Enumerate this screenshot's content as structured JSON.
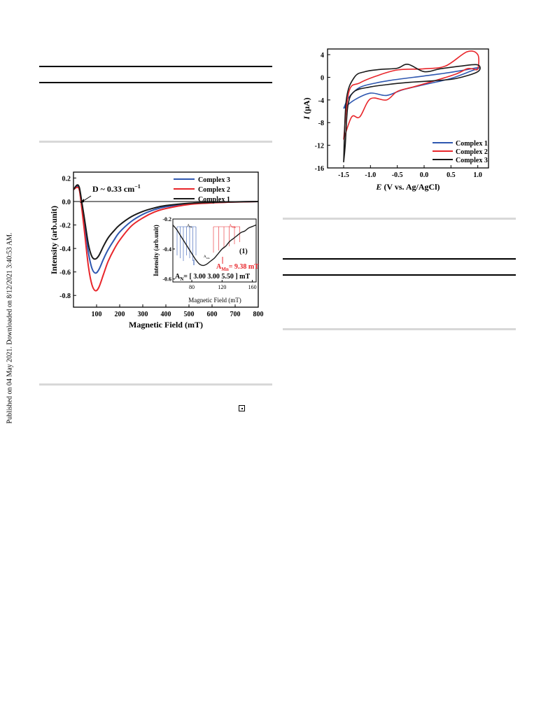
{
  "sidebar": {
    "text": "Published on 04 May 2021. Downloaded on 8/12/2021 3:40:53 AM."
  },
  "chart_data": [
    {
      "type": "line",
      "title": "",
      "xlabel": "Magnetic Field (mT)",
      "ylabel": "Intensity (arb.unit)",
      "xlim": [
        0,
        800
      ],
      "ylim": [
        -0.9,
        0.25
      ],
      "xticks": [
        100,
        200,
        300,
        400,
        500,
        600,
        700,
        800
      ],
      "yticks": [
        0.2,
        0.0,
        -0.2,
        -0.4,
        -0.6,
        -0.8
      ],
      "grid": false,
      "legend_position": "top-right",
      "annotation": "D ~ 0.33 cm",
      "annotation_sup": "−1",
      "series": [
        {
          "name": "Complex 3",
          "color": "#2e57b0",
          "x": [
            0,
            15,
            25,
            35,
            50,
            65,
            80,
            95,
            110,
            130,
            150,
            175,
            200,
            250,
            300,
            350,
            400,
            500,
            600,
            700,
            800
          ],
          "y": [
            0.1,
            0.13,
            0.11,
            -0.02,
            -0.22,
            -0.44,
            -0.57,
            -0.61,
            -0.58,
            -0.49,
            -0.41,
            -0.33,
            -0.26,
            -0.17,
            -0.11,
            -0.07,
            -0.045,
            -0.02,
            -0.01,
            -0.004,
            0.0
          ]
        },
        {
          "name": "Complex 2",
          "color": "#e8262b",
          "x": [
            0,
            15,
            25,
            35,
            50,
            65,
            80,
            95,
            110,
            130,
            150,
            175,
            200,
            250,
            300,
            350,
            400,
            500,
            600,
            700,
            800
          ],
          "y": [
            0.1,
            0.12,
            0.1,
            -0.04,
            -0.3,
            -0.56,
            -0.71,
            -0.76,
            -0.73,
            -0.62,
            -0.51,
            -0.41,
            -0.33,
            -0.21,
            -0.14,
            -0.09,
            -0.06,
            -0.025,
            -0.012,
            -0.005,
            0.0
          ]
        },
        {
          "name": "Complex 1",
          "color": "#1a1a1a",
          "x": [
            0,
            15,
            25,
            35,
            50,
            65,
            80,
            95,
            110,
            130,
            150,
            175,
            200,
            250,
            300,
            350,
            400,
            500,
            600,
            700,
            800
          ],
          "y": [
            0.1,
            0.14,
            0.12,
            0.01,
            -0.18,
            -0.37,
            -0.47,
            -0.49,
            -0.46,
            -0.38,
            -0.31,
            -0.25,
            -0.2,
            -0.13,
            -0.085,
            -0.055,
            -0.035,
            -0.015,
            -0.007,
            -0.003,
            0.0
          ]
        }
      ],
      "inset": {
        "xlabel": "Magnetic Field (mT)",
        "ylabel": "Intensity (arb.unit)",
        "xlim": [
          55,
          165
        ],
        "ylim": [
          -0.62,
          -0.2
        ],
        "xticks": [
          80,
          120,
          160
        ],
        "yticks": [
          -0.2,
          -0.4,
          -0.6
        ],
        "label": "(1)",
        "a_n_label": "A",
        "a_n_sub": "N",
        "a_mn_label": "A",
        "a_mn_sub": "Mn",
        "a_n_text": "= [ 3.00   3.00   5.50 ] mT",
        "a_mn_text": "= 9.38 mT",
        "a_mn_color": "#e8262b",
        "curve": {
          "x": [
            55,
            60,
            65,
            70,
            75,
            80,
            85,
            90,
            95,
            100,
            105,
            110,
            115,
            120,
            125,
            130,
            135,
            140,
            145,
            150,
            155,
            160,
            165
          ],
          "y": [
            -0.24,
            -0.27,
            -0.31,
            -0.35,
            -0.39,
            -0.43,
            -0.47,
            -0.5,
            -0.51,
            -0.5,
            -0.48,
            -0.46,
            -0.43,
            -0.4,
            -0.38,
            -0.35,
            -0.33,
            -0.31,
            -0.29,
            -0.28,
            -0.26,
            -0.25,
            -0.24
          ]
        }
      }
    },
    {
      "type": "line",
      "title": "",
      "xlabel": "E (V vs. Ag/AgCl)",
      "xlabel_italic": "E",
      "xlabel_rest": " (V vs. Ag/AgCl)",
      "ylabel": "I (μA)",
      "ylabel_italic": "I",
      "ylabel_rest": " (μA)",
      "xlim": [
        -1.8,
        1.2
      ],
      "ylim": [
        -16,
        5
      ],
      "xticks": [
        -1.5,
        -1.0,
        -0.5,
        0.0,
        0.5,
        1.0
      ],
      "yticks": [
        4,
        0,
        -4,
        -8,
        -12,
        -16
      ],
      "grid": false,
      "legend_position": "bottom-right",
      "series": [
        {
          "name": "Complex 1",
          "color": "#2e57b0",
          "x": [
            -1.5,
            -1.3,
            -1.0,
            -0.7,
            -0.4,
            0.0,
            0.5,
            0.9,
            1.0,
            1.0,
            0.7,
            0.3,
            -0.2,
            -0.6,
            -0.9,
            -1.2,
            -1.4,
            -1.5
          ],
          "y": [
            -5.5,
            -4.0,
            -2.8,
            -3.2,
            -2.2,
            -1.3,
            -0.2,
            1.2,
            1.5,
            1.7,
            1.2,
            0.6,
            0.0,
            -0.5,
            -1.0,
            -1.8,
            -3.5,
            -5.5
          ]
        },
        {
          "name": "Complex 2",
          "color": "#e8262b",
          "x": [
            -1.5,
            -1.35,
            -1.2,
            -1.0,
            -0.7,
            -0.5,
            -0.2,
            0.2,
            0.6,
            0.8,
            0.9,
            1.0,
            1.0,
            0.8,
            0.4,
            0.0,
            -0.5,
            -0.9,
            -1.2,
            -1.4,
            -1.5
          ],
          "y": [
            -11.0,
            -7.0,
            -7.0,
            -3.8,
            -4.0,
            -2.5,
            -1.7,
            -0.6,
            0.6,
            1.5,
            1.5,
            1.5,
            4.0,
            4.5,
            2.0,
            1.5,
            1.3,
            0.2,
            -1.0,
            -2.5,
            -11.0
          ]
        },
        {
          "name": "Complex 3",
          "color": "#1a1a1a",
          "x": [
            -1.5,
            -1.47,
            -1.42,
            -1.3,
            -1.0,
            -0.7,
            -0.3,
            0.2,
            0.6,
            1.0,
            1.0,
            0.7,
            0.3,
            0.0,
            -0.3,
            -0.5,
            -0.8,
            -1.1,
            -1.3,
            -1.45,
            -1.5
          ],
          "y": [
            -15.0,
            -12.0,
            -5.0,
            -2.5,
            -1.7,
            -1.3,
            -0.9,
            -0.6,
            -0.2,
            1.0,
            2.2,
            2.0,
            1.5,
            1.0,
            2.3,
            1.6,
            1.4,
            1.0,
            0.0,
            -4.0,
            -15.0
          ]
        }
      ]
    }
  ]
}
